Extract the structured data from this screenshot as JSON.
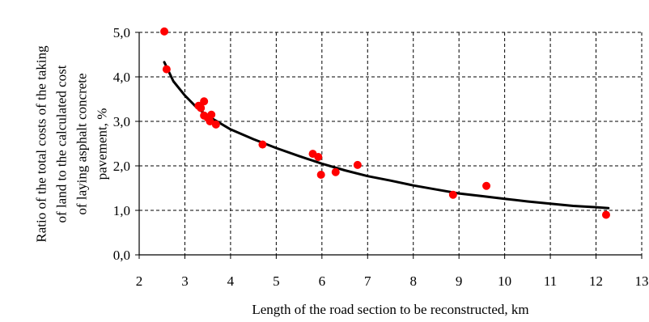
{
  "chart_data": {
    "type": "scatter",
    "title": "",
    "xlabel": "Length of the road section to be reconstructed, km",
    "ylabel_lines": [
      "Ratio of the total costs of the taking",
      "of land to the calculated cost",
      "of laying asphalt concrete",
      "pavement, %"
    ],
    "xlim": [
      2,
      13
    ],
    "ylim": [
      0,
      5
    ],
    "x_ticks": [
      "2",
      "3",
      "4",
      "5",
      "6",
      "7",
      "8",
      "9",
      "10",
      "11",
      "12",
      "13"
    ],
    "y_ticks": [
      "0,0",
      "1,0",
      "2,0",
      "3,0",
      "4,0",
      "5,0"
    ],
    "grid": "dashed",
    "series": [
      {
        "kind": "points",
        "color": "#ff0000",
        "points": [
          {
            "x": 2.55,
            "y": 5.02
          },
          {
            "x": 2.6,
            "y": 4.17
          },
          {
            "x": 3.3,
            "y": 3.35
          },
          {
            "x": 3.35,
            "y": 3.3
          },
          {
            "x": 3.42,
            "y": 3.45
          },
          {
            "x": 3.42,
            "y": 3.13
          },
          {
            "x": 3.5,
            "y": 3.08
          },
          {
            "x": 3.55,
            "y": 3.0
          },
          {
            "x": 3.58,
            "y": 3.15
          },
          {
            "x": 3.68,
            "y": 2.93
          },
          {
            "x": 4.7,
            "y": 2.48
          },
          {
            "x": 5.8,
            "y": 2.27
          },
          {
            "x": 5.92,
            "y": 2.2
          },
          {
            "x": 5.98,
            "y": 1.8
          },
          {
            "x": 6.3,
            "y": 1.86
          },
          {
            "x": 6.78,
            "y": 2.02
          },
          {
            "x": 8.87,
            "y": 1.35
          },
          {
            "x": 9.6,
            "y": 1.55
          },
          {
            "x": 12.22,
            "y": 0.9
          }
        ]
      },
      {
        "kind": "trend",
        "color": "#000000",
        "points": [
          {
            "x": 2.55,
            "y": 4.33
          },
          {
            "x": 2.75,
            "y": 3.9
          },
          {
            "x": 3.0,
            "y": 3.58
          },
          {
            "x": 3.25,
            "y": 3.32
          },
          {
            "x": 3.5,
            "y": 3.12
          },
          {
            "x": 3.75,
            "y": 2.97
          },
          {
            "x": 4.0,
            "y": 2.82
          },
          {
            "x": 4.5,
            "y": 2.6
          },
          {
            "x": 5.0,
            "y": 2.4
          },
          {
            "x": 5.5,
            "y": 2.22
          },
          {
            "x": 6.0,
            "y": 2.05
          },
          {
            "x": 6.5,
            "y": 1.9
          },
          {
            "x": 7.0,
            "y": 1.77
          },
          {
            "x": 7.5,
            "y": 1.67
          },
          {
            "x": 8.0,
            "y": 1.56
          },
          {
            "x": 8.5,
            "y": 1.47
          },
          {
            "x": 9.0,
            "y": 1.38
          },
          {
            "x": 9.5,
            "y": 1.32
          },
          {
            "x": 10.0,
            "y": 1.26
          },
          {
            "x": 10.5,
            "y": 1.2
          },
          {
            "x": 11.0,
            "y": 1.15
          },
          {
            "x": 11.5,
            "y": 1.1
          },
          {
            "x": 12.0,
            "y": 1.07
          },
          {
            "x": 12.27,
            "y": 1.05
          }
        ]
      }
    ]
  }
}
